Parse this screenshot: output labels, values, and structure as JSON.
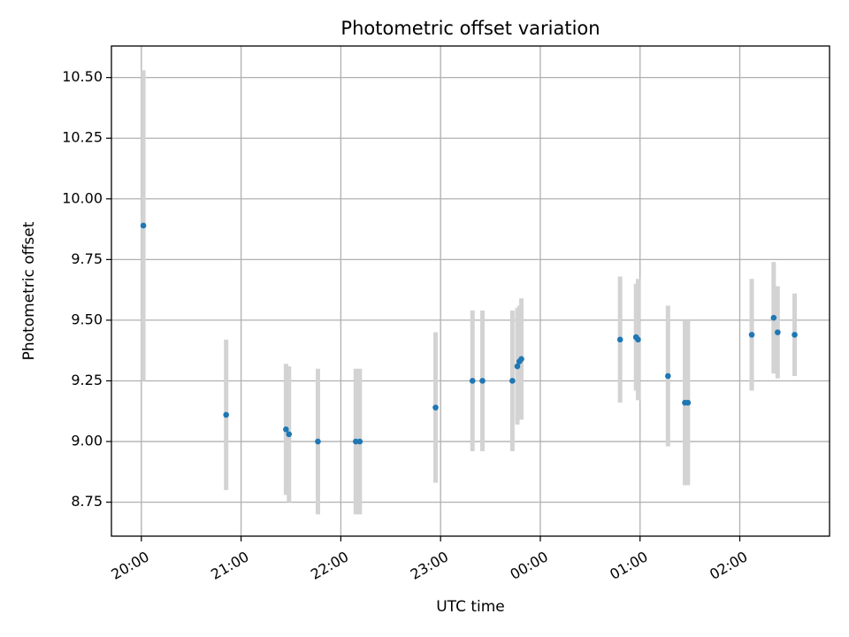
{
  "chart_data": {
    "type": "scatter",
    "title": "Photometric offset variation",
    "xlabel": "UTC time",
    "ylabel": "Photometric offset",
    "x_ticks": [
      "20:00",
      "21:00",
      "22:00",
      "23:00",
      "00:00",
      "01:00",
      "02:00"
    ],
    "y_ticks": [
      "8.75",
      "9.00",
      "9.25",
      "9.50",
      "9.75",
      "10.00",
      "10.25",
      "10.50"
    ],
    "x_unit": "hours after 20:00 UTC",
    "xlim": [
      -0.3,
      6.9
    ],
    "ylim": [
      8.61,
      10.63
    ],
    "grid": true,
    "colors": {
      "points": "#1f77b4",
      "errorbars": "#d3d3d3",
      "grid": "#b0b0b0"
    },
    "series": [
      {
        "points": [
          {
            "x": 0.02,
            "y": 9.89,
            "err": 0.64
          },
          {
            "x": 0.85,
            "y": 9.11,
            "err": 0.31
          },
          {
            "x": 1.45,
            "y": 9.05,
            "err": 0.27
          },
          {
            "x": 1.48,
            "y": 9.03,
            "err": 0.28
          },
          {
            "x": 1.77,
            "y": 9.0,
            "err": 0.3
          },
          {
            "x": 2.15,
            "y": 9.0,
            "err": 0.3
          },
          {
            "x": 2.19,
            "y": 9.0,
            "err": 0.3
          },
          {
            "x": 2.95,
            "y": 9.14,
            "err": 0.31
          },
          {
            "x": 3.32,
            "y": 9.25,
            "err": 0.29
          },
          {
            "x": 3.42,
            "y": 9.25,
            "err": 0.29
          },
          {
            "x": 3.72,
            "y": 9.25,
            "err": 0.29
          },
          {
            "x": 3.77,
            "y": 9.31,
            "err": 0.24
          },
          {
            "x": 3.79,
            "y": 9.33,
            "err": 0.23
          },
          {
            "x": 3.81,
            "y": 9.34,
            "err": 0.25
          },
          {
            "x": 4.8,
            "y": 9.42,
            "err": 0.26
          },
          {
            "x": 4.96,
            "y": 9.43,
            "err": 0.22
          },
          {
            "x": 4.98,
            "y": 9.42,
            "err": 0.25
          },
          {
            "x": 5.28,
            "y": 9.27,
            "err": 0.29
          },
          {
            "x": 5.45,
            "y": 9.16,
            "err": 0.34
          },
          {
            "x": 5.48,
            "y": 9.16,
            "err": 0.34
          },
          {
            "x": 6.12,
            "y": 9.44,
            "err": 0.23
          },
          {
            "x": 6.34,
            "y": 9.51,
            "err": 0.23
          },
          {
            "x": 6.38,
            "y": 9.45,
            "err": 0.19
          },
          {
            "x": 6.55,
            "y": 9.44,
            "err": 0.17
          }
        ]
      }
    ]
  }
}
